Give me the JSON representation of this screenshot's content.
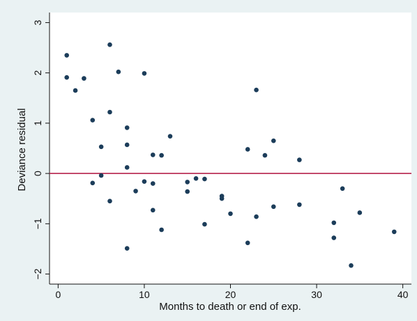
{
  "chart_data": {
    "type": "scatter",
    "title": "",
    "xlabel": "Months to death or end of exp.",
    "ylabel": "Deviance residual",
    "xlim": [
      -1,
      41
    ],
    "ylim": [
      -2.2,
      3.2
    ],
    "xticks": [
      0,
      10,
      20,
      30,
      40
    ],
    "yticks": [
      -2,
      -1,
      0,
      1,
      2,
      3
    ],
    "ytick_labels": [
      "−2",
      "−1",
      "0",
      "1",
      "2",
      "3"
    ],
    "grid": false,
    "reference_line": {
      "y": 0,
      "color": "#b5204a"
    },
    "series": [
      {
        "marker_color": "#1c3d5a",
        "points": [
          [
            1,
            2.35
          ],
          [
            1,
            1.91
          ],
          [
            2,
            1.65
          ],
          [
            3,
            1.89
          ],
          [
            4,
            1.06
          ],
          [
            4,
            -0.19
          ],
          [
            5,
            0.53
          ],
          [
            5,
            -0.04
          ],
          [
            6,
            2.56
          ],
          [
            6,
            1.22
          ],
          [
            6,
            -0.55
          ],
          [
            7,
            2.02
          ],
          [
            8,
            0.91
          ],
          [
            8,
            0.57
          ],
          [
            8,
            0.12
          ],
          [
            8,
            -1.49
          ],
          [
            9,
            -0.35
          ],
          [
            10,
            1.99
          ],
          [
            10,
            -0.16
          ],
          [
            11,
            0.37
          ],
          [
            11,
            -0.2
          ],
          [
            11,
            -0.73
          ],
          [
            12,
            0.36
          ],
          [
            12,
            -1.12
          ],
          [
            13,
            0.74
          ],
          [
            15,
            -0.17
          ],
          [
            15,
            -0.36
          ],
          [
            16,
            -0.1
          ],
          [
            17,
            -0.11
          ],
          [
            17,
            -1.01
          ],
          [
            19,
            -0.45
          ],
          [
            19,
            -0.5
          ],
          [
            20,
            -0.8
          ],
          [
            22,
            0.48
          ],
          [
            22,
            -1.38
          ],
          [
            23,
            1.66
          ],
          [
            23,
            -0.86
          ],
          [
            24,
            0.36
          ],
          [
            25,
            0.65
          ],
          [
            25,
            -0.66
          ],
          [
            28,
            0.27
          ],
          [
            28,
            -0.62
          ],
          [
            32,
            -0.98
          ],
          [
            32,
            -1.28
          ],
          [
            33,
            -0.3
          ],
          [
            34,
            -1.83
          ],
          [
            35,
            -0.78
          ],
          [
            39,
            -1.16
          ]
        ]
      }
    ],
    "colors": {
      "background_outer": "#eaf2f3",
      "plot_background": "#ffffff",
      "axis": "#111111",
      "marker": "#1c3d5a",
      "reference_line": "#b5204a"
    }
  }
}
